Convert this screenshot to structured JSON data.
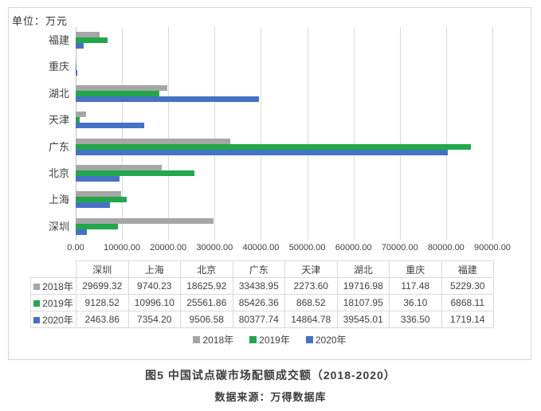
{
  "chart_data": {
    "type": "bar",
    "orientation": "horizontal",
    "unit_label": "单位：万元",
    "categories_top_to_bottom": [
      "福建",
      "重庆",
      "湖北",
      "天津",
      "广东",
      "北京",
      "上海",
      "深圳"
    ],
    "columns": [
      "深圳",
      "上海",
      "北京",
      "广东",
      "天津",
      "湖北",
      "重庆",
      "福建"
    ],
    "series": [
      {
        "name": "2018年",
        "color": "#A6A6A6",
        "values": [
          "29699.32",
          "9740.23",
          "18625.92",
          "33438.95",
          "2273.60",
          "19716.98",
          "117.48",
          "5229.30"
        ]
      },
      {
        "name": "2019年",
        "color": "#22A74B",
        "values": [
          "9128.52",
          "10996.10",
          "25561.86",
          "85426.36",
          "868.52",
          "18107.95",
          "36.10",
          "6868.11"
        ]
      },
      {
        "name": "2020年",
        "color": "#4472C4",
        "values": [
          "2463.86",
          "7354.20",
          "9506.58",
          "80377.74",
          "14864.78",
          "39545.01",
          "336.50",
          "1719.14"
        ]
      }
    ],
    "x_tick_labels": [
      "0.00",
      "10000.00",
      "20000.00",
      "30000.00",
      "40000.00",
      "50000.00",
      "60000.00",
      "70000.00",
      "80000.00",
      "90000.00"
    ],
    "xlim": [
      0,
      90000
    ],
    "grid": true,
    "grid_color": "#D9D9D9",
    "legend_position": "bottom"
  },
  "caption": {
    "title": "图5 中国试点碳市场配额成交额（2018-2020）",
    "source": "数据来源：万得数据库"
  }
}
